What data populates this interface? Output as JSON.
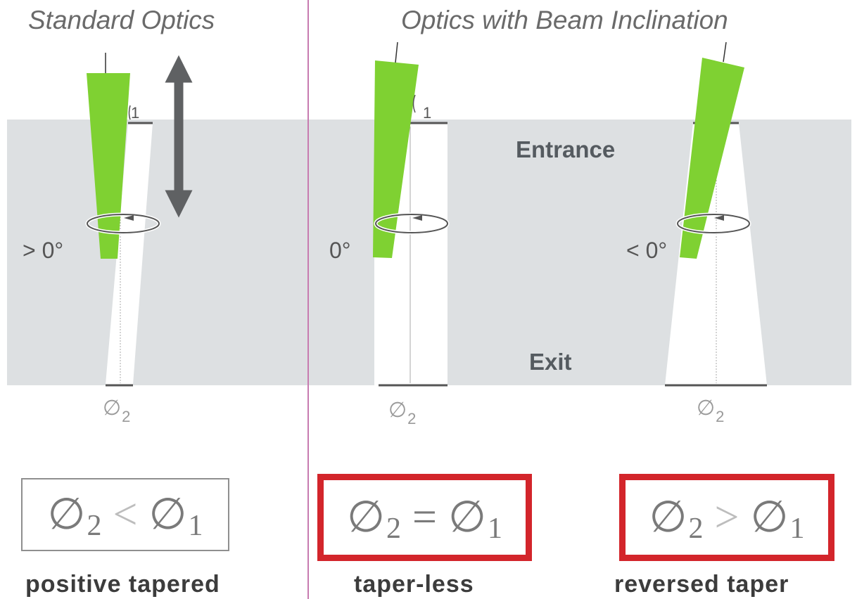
{
  "titles": {
    "standard": "Standard Optics",
    "inclined": "Optics with Beam Inclination"
  },
  "zones": {
    "entrance": "Entrance",
    "exit": "Exit"
  },
  "angles": {
    "positive": "> 0°",
    "zero": "0°",
    "negative": "< 0°"
  },
  "diameter_labels": {
    "top_index": "1",
    "symbol": "∅",
    "bottom_index": "2"
  },
  "formulas": [
    {
      "left": "∅",
      "left_sub": "2",
      "op": "<",
      "right": "∅",
      "right_sub": "1"
    },
    {
      "left": "∅",
      "left_sub": "2",
      "op": "=",
      "right": "∅",
      "right_sub": "1"
    },
    {
      "left": "∅",
      "left_sub": "2",
      "op": ">",
      "right": "∅",
      "right_sub": "1"
    }
  ],
  "captions": {
    "standard": "positive tapered",
    "tapered_none": "taper-less",
    "reversed": "reversed taper"
  },
  "colors": {
    "beam": "#7fd132",
    "band": "#dde0e2",
    "divider": "#c77bb0",
    "highlight_border": "#d3252b",
    "arrow": "#5f6163"
  }
}
